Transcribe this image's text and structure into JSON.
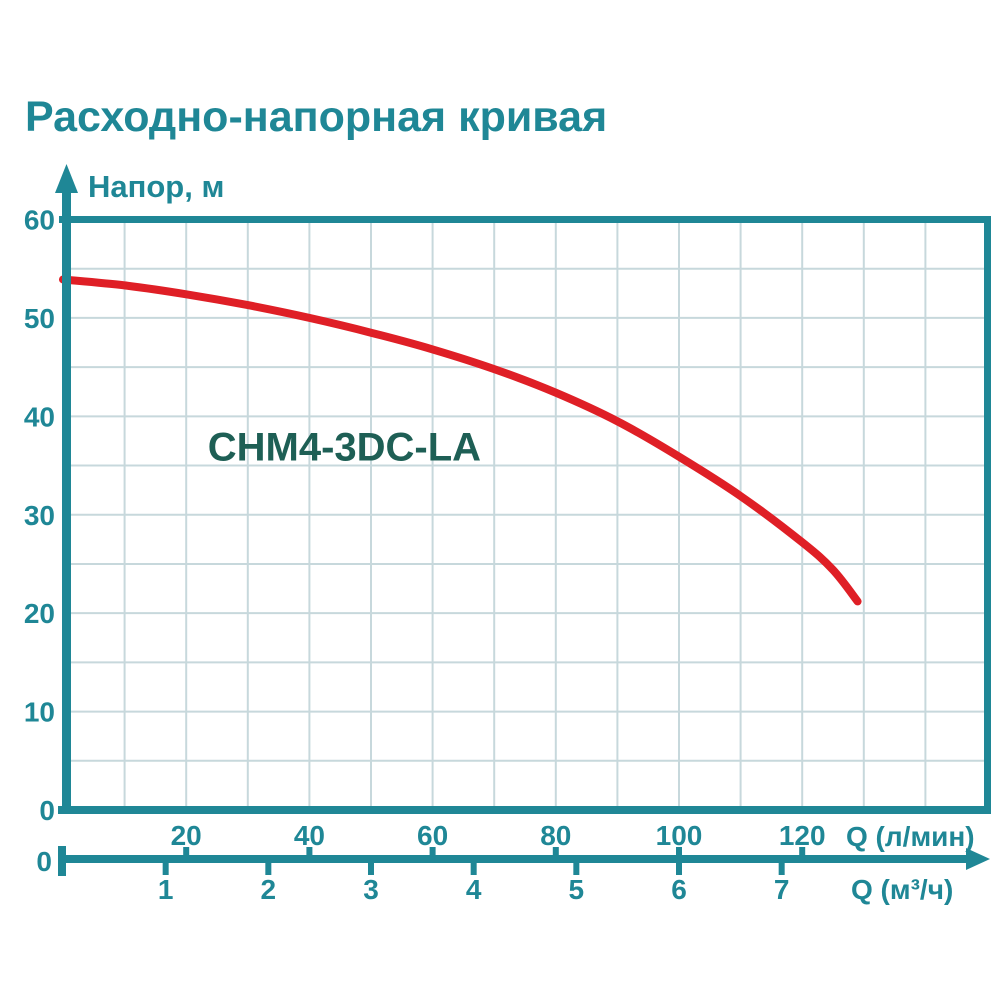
{
  "colors": {
    "teal": "#1f8796",
    "grid": "#c7d8dc",
    "curve": "#df1f26",
    "model_label": "#1e5f55",
    "background": "#ffffff"
  },
  "chart_data": {
    "type": "line",
    "title": "Расходно-напорная кривая",
    "grid": "on",
    "y_axis": {
      "label": "Напор, м",
      "min": 0,
      "max": 60,
      "major_ticks": [
        0,
        10,
        20,
        30,
        40,
        50,
        60
      ],
      "grid_step": 5
    },
    "x_axis_primary": {
      "label": "Q (л/мин)",
      "min": 0,
      "max": 150,
      "ticks": [
        20,
        40,
        60,
        80,
        100,
        120
      ],
      "origin_label": "0",
      "grid_step": 10
    },
    "x_axis_secondary": {
      "label": "Q (м³/ч)",
      "ticks": [
        1,
        2,
        3,
        4,
        5,
        6,
        7
      ],
      "lmin_per_unit": 16.6667
    },
    "series": [
      {
        "name": "CHM4-3DC-LA",
        "color": "#df1f26",
        "points_q_lmin_h_m": [
          [
            0,
            53.9
          ],
          [
            10,
            53.3
          ],
          [
            20,
            52.4
          ],
          [
            30,
            51.3
          ],
          [
            40,
            50.0
          ],
          [
            50,
            48.5
          ],
          [
            60,
            46.8
          ],
          [
            70,
            44.8
          ],
          [
            80,
            42.4
          ],
          [
            90,
            39.5
          ],
          [
            100,
            35.9
          ],
          [
            110,
            31.9
          ],
          [
            120,
            27.2
          ],
          [
            125,
            24.4
          ],
          [
            129,
            21.2
          ]
        ]
      }
    ],
    "annotation": {
      "text": "CHM4-3DC-LA",
      "x_lmin": 23.5,
      "y_m": 35.5
    }
  }
}
